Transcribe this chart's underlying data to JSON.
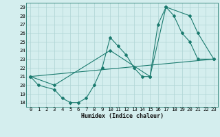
{
  "xlabel": "Humidex (Indice chaleur)",
  "bg_color": "#d4eeee",
  "line_color": "#1a7a6e",
  "grid_color": "#aed4d4",
  "xlim": [
    -0.5,
    23.5
  ],
  "ylim": [
    17.5,
    29.5
  ],
  "xticks": [
    0,
    1,
    2,
    3,
    4,
    5,
    6,
    7,
    8,
    9,
    10,
    11,
    12,
    13,
    14,
    15,
    16,
    17,
    18,
    19,
    20,
    21,
    22,
    23
  ],
  "yticks": [
    18,
    19,
    20,
    21,
    22,
    23,
    24,
    25,
    26,
    27,
    28,
    29
  ],
  "line1_x": [
    0,
    1,
    3,
    4,
    5,
    6,
    7,
    8,
    9,
    10,
    11,
    12,
    13,
    14,
    15,
    16,
    17,
    18,
    19,
    20,
    21,
    23
  ],
  "line1_y": [
    21,
    20,
    19.5,
    18.5,
    18,
    18,
    18.5,
    20,
    22,
    25.5,
    24.5,
    23.5,
    22,
    21,
    21,
    27,
    29,
    28,
    26,
    25,
    23,
    23
  ],
  "line2_x": [
    0,
    3,
    10,
    15,
    17,
    20,
    21,
    23
  ],
  "line2_y": [
    21,
    20,
    24,
    21,
    29,
    28,
    26,
    23
  ],
  "line3_x": [
    0,
    23
  ],
  "line3_y": [
    21,
    23
  ],
  "xlabel_fontsize": 6.0,
  "tick_fontsize": 5.2
}
